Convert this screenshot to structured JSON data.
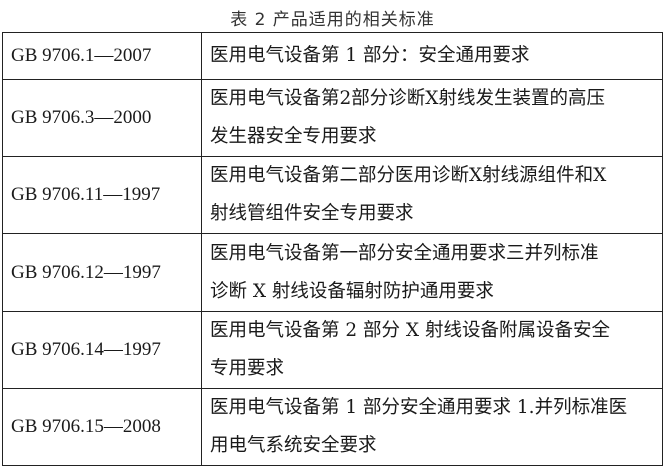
{
  "caption": "表 2 产品适用的相关标准",
  "rows": [
    {
      "code": "GB 9706.1—2007",
      "lines": [
        "医用电气设备第 1 部分：安全通用要求"
      ]
    },
    {
      "code": "GB 9706.3—2000",
      "lines": [
        "医用电气设备第2部分诊断X射线发生装置的高压",
        "发生器安全专用要求"
      ]
    },
    {
      "code": "GB 9706.11—1997",
      "lines": [
        "医用电气设备第二部分医用诊断X射线源组件和X",
        "射线管组件安全专用要求"
      ]
    },
    {
      "code": "GB 9706.12—1997",
      "lines": [
        "医用电气设备第一部分安全通用要求三并列标准",
        "诊断 X 射线设备辐射防护通用要求"
      ]
    },
    {
      "code": "GB 9706.14—1997",
      "lines": [
        "医用电气设备第 2 部分  X 射线设备附属设备安全",
        "专用要求"
      ]
    },
    {
      "code": "GB 9706.15—2008",
      "lines": [
        "医用电气设备第 1 部分安全通用要求 1.并列标准医",
        "用电气系统安全要求"
      ]
    }
  ]
}
